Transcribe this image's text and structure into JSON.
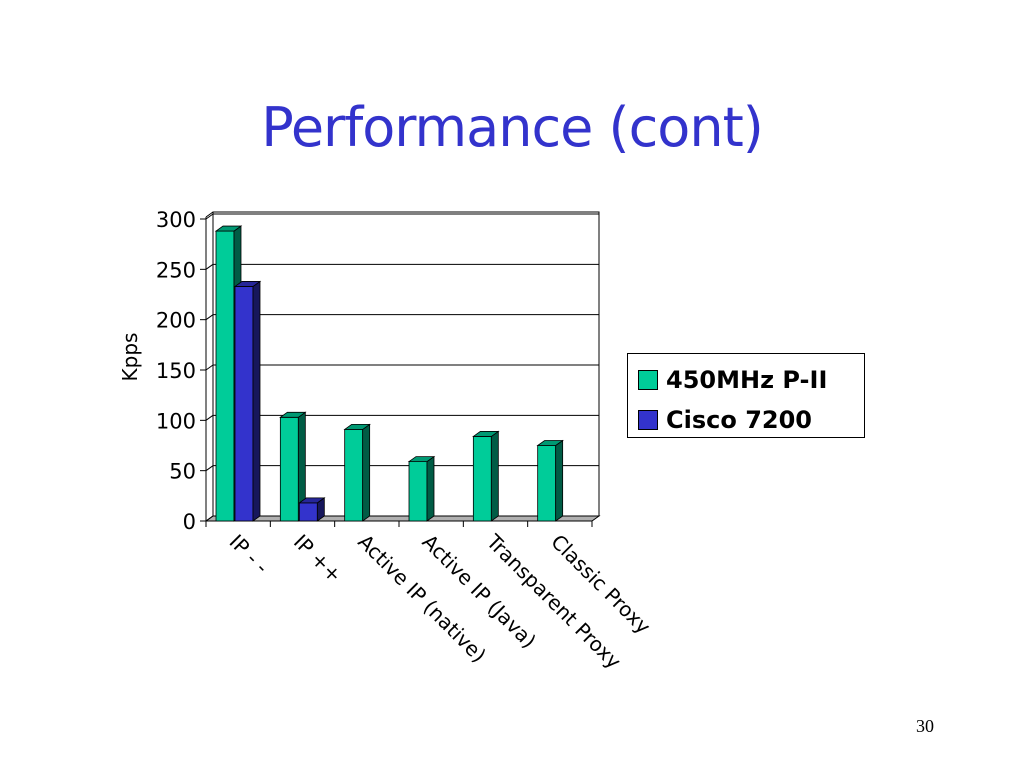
{
  "slide": {
    "title": "Performance (cont)",
    "page_number": "30"
  },
  "colors": {
    "title": "#3333cc",
    "series_1": "#00cc99",
    "series_2": "#3333cc"
  },
  "chart_data": {
    "type": "bar",
    "style": "3d-clustered-column",
    "categories": [
      "IP - -",
      "IP ++",
      "Active IP (native)",
      "Active IP (Java)",
      "Transparent Proxy",
      "Classic Proxy"
    ],
    "series": [
      {
        "name": "450MHz P-II",
        "values": [
          288,
          103,
          91,
          59,
          84,
          75
        ]
      },
      {
        "name": "Cisco 7200",
        "values": [
          233,
          18,
          0,
          0,
          0,
          0
        ]
      }
    ],
    "ylabel": "Kpps",
    "xlabel": "",
    "ylim": [
      0,
      300
    ],
    "yticks": [
      0,
      50,
      100,
      150,
      200,
      250,
      300
    ],
    "grid": true,
    "legend": "right"
  }
}
